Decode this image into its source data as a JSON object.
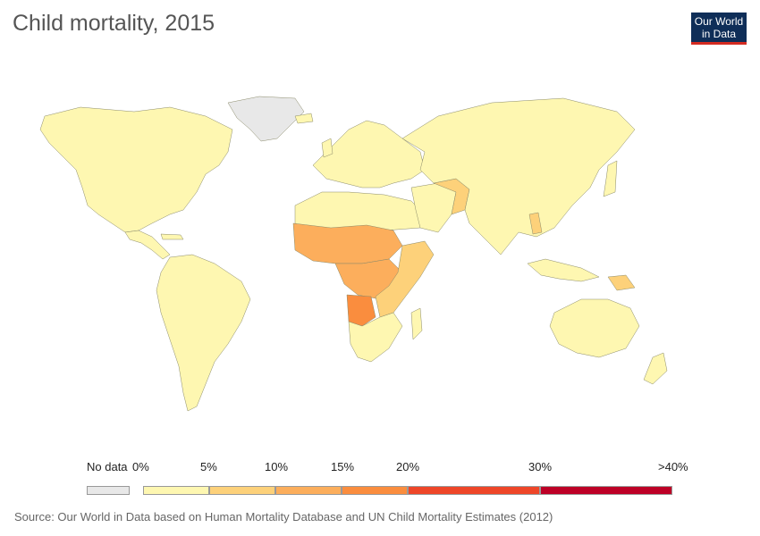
{
  "title": "Child mortality, 2015",
  "logo": {
    "line1": "Our World",
    "line2": "in Data",
    "bg_color": "#0f2e58",
    "accent_color": "#d42b21"
  },
  "legend": {
    "no_data_label": "No data",
    "no_data_color": "#e8e8e8",
    "ticks": [
      "0%",
      "5%",
      "10%",
      "15%",
      "20%",
      "30%",
      ">40%"
    ],
    "bins": [
      {
        "range": "0–5%",
        "color": "#fef7b1"
      },
      {
        "range": "5–10%",
        "color": "#fdd17a"
      },
      {
        "range": "10–15%",
        "color": "#fcae5c"
      },
      {
        "range": "15–20%",
        "color": "#fa8d3e"
      },
      {
        "range": "20–30%",
        "color": "#ee4628"
      },
      {
        "range": "30–40%",
        "color": "#bd0026"
      }
    ]
  },
  "source": "Source: Our World in Data based on Human Mortality Database and UN Child Mortality Estimates (2012)",
  "map_regions": [
    {
      "region": "North America",
      "bin": "0–5%",
      "color": "#fef7b1"
    },
    {
      "region": "Greenland",
      "bin": "No data",
      "color": "#e8e8e8"
    },
    {
      "region": "South America",
      "bin": "0–5%",
      "color": "#fef7b1"
    },
    {
      "region": "Europe",
      "bin": "0–5%",
      "color": "#fef7b1"
    },
    {
      "region": "North Africa",
      "bin": "0–5%",
      "color": "#fef7b1"
    },
    {
      "region": "Sahel / West Africa",
      "bin": "10–15%",
      "color": "#fcae5c"
    },
    {
      "region": "Central Africa",
      "bin": "10–15%",
      "color": "#fcae5c"
    },
    {
      "region": "Angola",
      "bin": "15–20%",
      "color": "#fa8d3e"
    },
    {
      "region": "East Africa",
      "bin": "5–10%",
      "color": "#fdd17a"
    },
    {
      "region": "Southern Africa",
      "bin": "0–5%",
      "color": "#fef7b1"
    },
    {
      "region": "Middle East",
      "bin": "0–5%",
      "color": "#fef7b1"
    },
    {
      "region": "Afghanistan / Pakistan",
      "bin": "5–10%",
      "color": "#fdd17a"
    },
    {
      "region": "Russia / Asia",
      "bin": "0–5%",
      "color": "#fef7b1"
    },
    {
      "region": "Laos",
      "bin": "5–10%",
      "color": "#fdd17a"
    },
    {
      "region": "Papua New Guinea",
      "bin": "5–10%",
      "color": "#fdd17a"
    },
    {
      "region": "Australia / NZ",
      "bin": "0–5%",
      "color": "#fef7b1"
    }
  ]
}
